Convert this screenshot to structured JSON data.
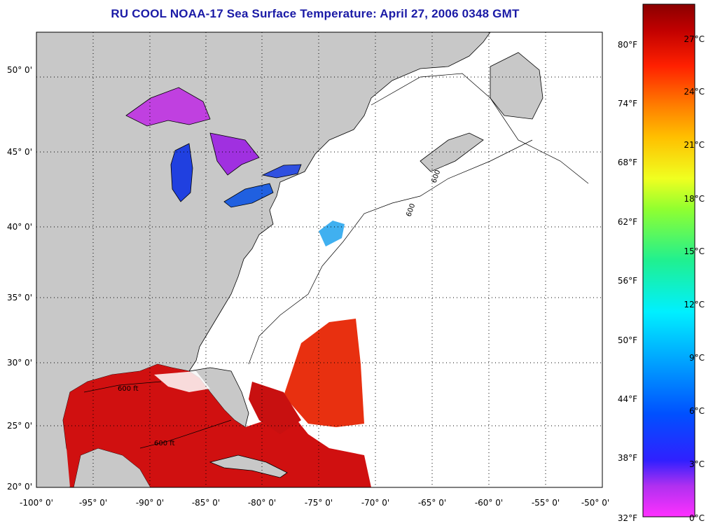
{
  "title": "RU COOL  NOAA-17  Sea Surface Temperature:  April 27, 2006 0348 GMT",
  "map": {
    "lat_labels": [
      "50° 0'",
      "45° 0'",
      "40° 0'",
      "35° 0'",
      "30° 0'",
      "25° 0'",
      "20° 0'"
    ],
    "lon_labels": [
      "-100° 0'",
      "-95° 0'",
      "-90° 0'",
      "-85° 0'",
      "-80° 0'",
      "-75° 0'",
      "-70° 0'",
      "-65° 0'",
      "-60° 0'",
      "-55° 0'",
      "-50° 0'"
    ],
    "contour_label": "600 ft",
    "contour_label_short": "600",
    "colors": {
      "land": "#c8c8c8",
      "no_data": "#ffffff",
      "grid": "#000000",
      "warm": "#d01010"
    }
  },
  "colorbar": {
    "fahrenheit_labels": [
      "80°F",
      "74°F",
      "68°F",
      "62°F",
      "56°F",
      "50°F",
      "44°F",
      "38°F",
      "32°F"
    ],
    "celsius_labels": [
      "27°C",
      "24°C",
      "21°C",
      "18°C",
      "15°C",
      "12°C",
      "9°C",
      "6°C",
      "3°C",
      "0°C"
    ],
    "range_celsius": [
      0,
      29
    ],
    "stops": [
      "#ff30ff",
      "#9030e0",
      "#2020ff",
      "#0070ff",
      "#00e0ff",
      "#00f0a0",
      "#60ff40",
      "#e8ff20",
      "#ffc000",
      "#ff7000",
      "#ff2000",
      "#c00000",
      "#8a0000"
    ]
  }
}
